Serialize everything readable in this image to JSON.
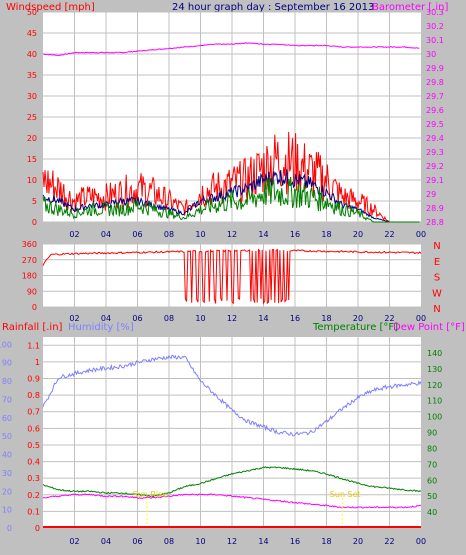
{
  "colors": {
    "bg": "#c0c0c0",
    "plot": "#ffffff",
    "grid": "#c0c0c0",
    "red": "#ff0000",
    "magenta": "#ff00ff",
    "navy": "#000080",
    "green": "#008000",
    "blue": "#8080ff",
    "darkgreen": "#008000",
    "yellow": "#ffff00"
  },
  "chart_data": [
    {
      "type": "line",
      "title": "24 hour graph day : September 16 2013",
      "ylabel": "Windspeed [mph]",
      "y2label": "Barometer [.in]",
      "xticks": [
        "02",
        "04",
        "06",
        "08",
        "10",
        "12",
        "14",
        "16",
        "18",
        "20",
        "22",
        "00"
      ],
      "ylim": [
        0,
        50
      ],
      "yticks": [
        "0",
        "5",
        "10",
        "15",
        "20",
        "25",
        "30",
        "35",
        "40",
        "45",
        "50"
      ],
      "y2lim": [
        28.8,
        30.3
      ],
      "y2ticks": [
        "28.8",
        "28.9",
        "29",
        "29.1",
        "29.2",
        "29.3",
        "29.4",
        "29.5",
        "29.6",
        "29.7",
        "29.8",
        "29.9",
        "30",
        "30.1",
        "30.2",
        "30.3"
      ],
      "hours": [
        0,
        1,
        2,
        3,
        4,
        5,
        6,
        7,
        8,
        9,
        10,
        11,
        12,
        13,
        14,
        15,
        16,
        17,
        18,
        19,
        20,
        21,
        22,
        23,
        24
      ],
      "series": [
        {
          "name": "Barometer",
          "axis": "right",
          "color": "#ff00ff",
          "values": [
            30.0,
            29.99,
            30.01,
            30.01,
            30.01,
            30.01,
            30.02,
            30.03,
            30.04,
            30.05,
            30.06,
            30.07,
            30.07,
            30.08,
            30.07,
            30.07,
            30.06,
            30.06,
            30.06,
            30.05,
            30.05,
            30.05,
            30.05,
            30.05,
            30.04
          ]
        },
        {
          "name": "Gust",
          "axis": "left",
          "color": "#ff0000",
          "values": [
            10,
            8,
            5,
            6,
            6,
            7,
            8,
            7,
            5,
            3,
            7,
            8,
            9,
            10,
            13,
            15,
            14,
            12,
            10,
            6,
            5,
            3,
            0,
            0,
            0
          ]
        },
        {
          "name": "Wind avg",
          "axis": "left",
          "color": "#000080",
          "values": [
            6,
            5,
            3,
            4,
            4,
            5,
            5,
            4,
            3,
            2,
            5,
            6,
            7,
            8,
            10,
            11,
            10,
            9,
            7,
            4,
            3,
            1,
            0,
            0,
            0
          ]
        },
        {
          "name": "Wind",
          "axis": "left",
          "color": "#008000",
          "values": [
            4,
            3,
            2,
            3,
            3,
            3,
            4,
            3,
            2,
            1,
            3,
            4,
            5,
            5,
            7,
            7,
            7,
            6,
            5,
            3,
            2,
            0,
            0,
            0,
            0
          ]
        }
      ]
    },
    {
      "type": "line",
      "ylabel_ticks": [
        "0",
        "90",
        "180",
        "270",
        "360"
      ],
      "ylim": [
        0,
        360
      ],
      "y2ticks": [
        "N",
        "W",
        "S",
        "E",
        "N"
      ],
      "xticks": [
        "02",
        "04",
        "06",
        "08",
        "10",
        "12",
        "14",
        "16",
        "18",
        "20",
        "22",
        "00"
      ],
      "series": [
        {
          "name": "Wind direction",
          "color": "#ff0000",
          "hours": [
            0,
            0.5,
            1,
            2,
            4,
            6,
            8,
            9,
            9.2,
            9.4,
            10,
            11,
            11.2,
            12,
            12.5,
            13,
            14,
            15,
            16,
            17,
            18,
            19,
            20,
            21,
            22,
            24
          ],
          "values": [
            240,
            300,
            300,
            305,
            310,
            310,
            315,
            320,
            40,
            320,
            30,
            320,
            40,
            330,
            30,
            320,
            30,
            320,
            330,
            325,
            330,
            320,
            310,
            310,
            310,
            310
          ]
        }
      ]
    },
    {
      "type": "line",
      "ylabel": "Rainfall [.in]",
      "ylabel2": "Humidity [%]",
      "y2label": "Temperature [°F]",
      "y3label": "Dew Point [°F]",
      "xticks": [
        "02",
        "04",
        "06",
        "08",
        "10",
        "12",
        "14",
        "16",
        "18",
        "20",
        "22",
        "00"
      ],
      "ylim_rain": [
        0,
        1.15
      ],
      "yticks_rain": [
        "0",
        "0.1",
        "0.2",
        "0.3",
        "0.4",
        "0.5",
        "0.6",
        "0.7",
        "0.8",
        "0.9",
        "1",
        "1.1"
      ],
      "ylim_hum": [
        0,
        100
      ],
      "yticks_hum": [
        "0",
        "10",
        "20",
        "30",
        "40",
        "50",
        "60",
        "70",
        "80",
        "90",
        "100"
      ],
      "ylim_temp": [
        30,
        150
      ],
      "yticks_temp": [
        "40",
        "50",
        "60",
        "70",
        "80",
        "90",
        "100",
        "110",
        "120",
        "130",
        "140"
      ],
      "annotations": [
        "Sun Rise",
        "Sun Set"
      ],
      "hours": [
        0,
        1,
        2,
        3,
        4,
        5,
        6,
        7,
        8,
        9,
        10,
        11,
        12,
        13,
        14,
        15,
        16,
        17,
        18,
        19,
        20,
        21,
        22,
        23,
        24
      ],
      "series": [
        {
          "name": "Humidity",
          "axis": "hum",
          "color": "#8080ff",
          "values": [
            66,
            82,
            84,
            86,
            87,
            88,
            90,
            92,
            93,
            93,
            80,
            72,
            64,
            58,
            55,
            52,
            51,
            52,
            58,
            65,
            71,
            75,
            77,
            78,
            79
          ]
        },
        {
          "name": "Temperature",
          "axis": "temp",
          "color": "#008000",
          "values": [
            57,
            54,
            53,
            53,
            52,
            52,
            51,
            50,
            52,
            56,
            58,
            61,
            64,
            66,
            68,
            68,
            67,
            66,
            64,
            61,
            58,
            56,
            55,
            54,
            53
          ]
        },
        {
          "name": "Dew Point",
          "axis": "temp",
          "color": "#ff00ff",
          "values": [
            49,
            50,
            51,
            51,
            50,
            50,
            49,
            49,
            50,
            51,
            51,
            51,
            50,
            49,
            48,
            47,
            46,
            45,
            44,
            43,
            43,
            43,
            43,
            43,
            44
          ]
        },
        {
          "name": "Rainfall",
          "axis": "rain",
          "color": "#ff0000",
          "values": [
            0,
            0,
            0,
            0,
            0,
            0,
            0,
            0,
            0,
            0,
            0,
            0,
            0,
            0,
            0,
            0,
            0,
            0,
            0,
            0,
            0,
            0,
            0,
            0,
            0
          ]
        }
      ]
    }
  ]
}
